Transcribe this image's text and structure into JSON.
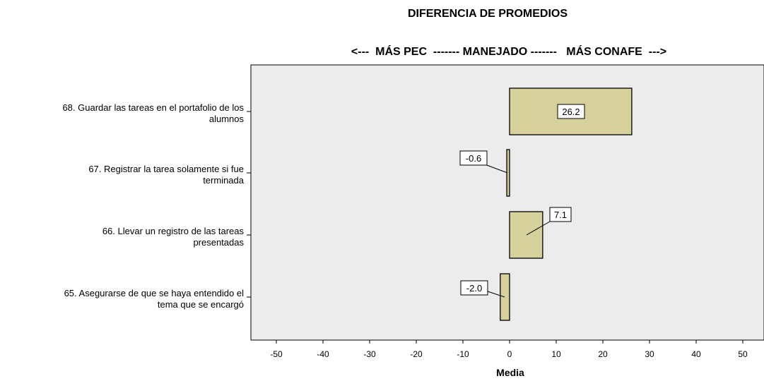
{
  "chart_data": {
    "type": "bar",
    "orientation": "horizontal",
    "title": "DIFERENCIA DE PROMEDIOS",
    "subtitle": "<---  MÁS PEC  ------- MANEJADO -------   MÁS CONAFE  --->",
    "xlabel": "Media",
    "ylabel": "",
    "xlim": [
      -55,
      55
    ],
    "xticks": [
      -50,
      -40,
      -30,
      -20,
      -10,
      0,
      10,
      20,
      30,
      40,
      50
    ],
    "categories": [
      "68. Guardar las tareas en el portafolio de los alumnos",
      "67. Registrar la tarea solamente si fue terminada",
      "66. Llevar un registro de las tareas presentadas",
      "65. Asegurarse de que se haya entendido el tema que se encargó"
    ],
    "category_lines": [
      [
        "68. Guardar las tareas en el portafolio de los",
        "alumnos"
      ],
      [
        "67. Registrar la tarea solamente si fue",
        "terminada"
      ],
      [
        "66. Llevar un registro de las tareas",
        "presentadas"
      ],
      [
        "65. Asegurarse de que se haya entendido el",
        "tema que se encargó"
      ]
    ],
    "values": [
      26.2,
      -0.6,
      7.1,
      -2.0
    ],
    "data_labels": [
      "26.2",
      "-0.6",
      "7.1",
      "-2.0"
    ],
    "grid": false,
    "colors": {
      "bar_fill": "#d6d09a",
      "bar_stroke": "#000000",
      "plot_background": "#ececec",
      "label_background": "#ffffff"
    }
  }
}
